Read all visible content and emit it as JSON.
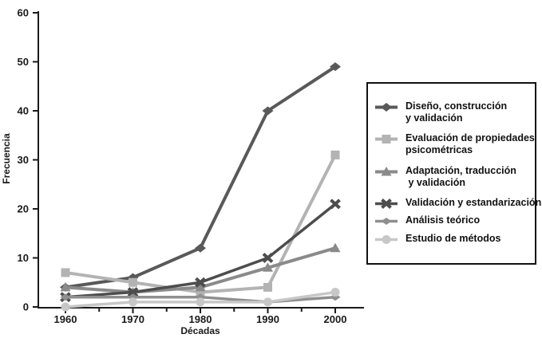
{
  "window": {
    "background": "#ffffff"
  },
  "chart_data": {
    "type": "line",
    "title": "",
    "xlabel": "Décadas",
    "ylabel": "Frecuencia",
    "categories": [
      "1960",
      "1970",
      "1980",
      "1990",
      "2000"
    ],
    "ylim": [
      0,
      60
    ],
    "yticks": [
      0,
      10,
      20,
      30,
      40,
      50,
      60
    ],
    "grid": false,
    "legend_position": "right",
    "axis_color": "#1a1a1a",
    "text_color": "#111111",
    "series": [
      {
        "name": "Diseño, construcción y validación",
        "legend_lines": [
          "Diseño, construcción",
          "y validación"
        ],
        "color": "#595959",
        "marker": "diamond",
        "line_width": 4,
        "values": [
          4,
          6,
          12,
          40,
          49
        ]
      },
      {
        "name": "Evaluación de propiedades psicométricas",
        "legend_lines": [
          "Evaluación de propiedades",
          "psicométricas"
        ],
        "color": "#b3b3b3",
        "marker": "square",
        "line_width": 4,
        "values": [
          7,
          5,
          3,
          4,
          31
        ]
      },
      {
        "name": "Adaptación, traducción y validación",
        "legend_lines": [
          "Adaptación, traducción",
          " y validación"
        ],
        "color": "#8a8a8a",
        "marker": "triangle",
        "line_width": 4,
        "values": [
          4,
          3,
          4,
          8,
          12
        ]
      },
      {
        "name": "Validación y estandarización",
        "legend_lines": [
          "Validación y estandarización"
        ],
        "color": "#4d4d4d",
        "marker": "x",
        "line_width": 3.5,
        "values": [
          2,
          3,
          5,
          10,
          21
        ]
      },
      {
        "name": "Análisis teórico",
        "legend_lines": [
          "Análisis teórico"
        ],
        "color": "#8f8f8f",
        "marker": "diamond-x",
        "line_width": 3.5,
        "values": [
          2,
          2,
          2,
          1,
          2
        ]
      },
      {
        "name": "Estudio de métodos",
        "legend_lines": [
          "Estudio de métodos"
        ],
        "color": "#c7c7c7",
        "marker": "circle",
        "line_width": 3.5,
        "values": [
          0,
          1,
          1,
          1,
          3
        ]
      }
    ]
  }
}
